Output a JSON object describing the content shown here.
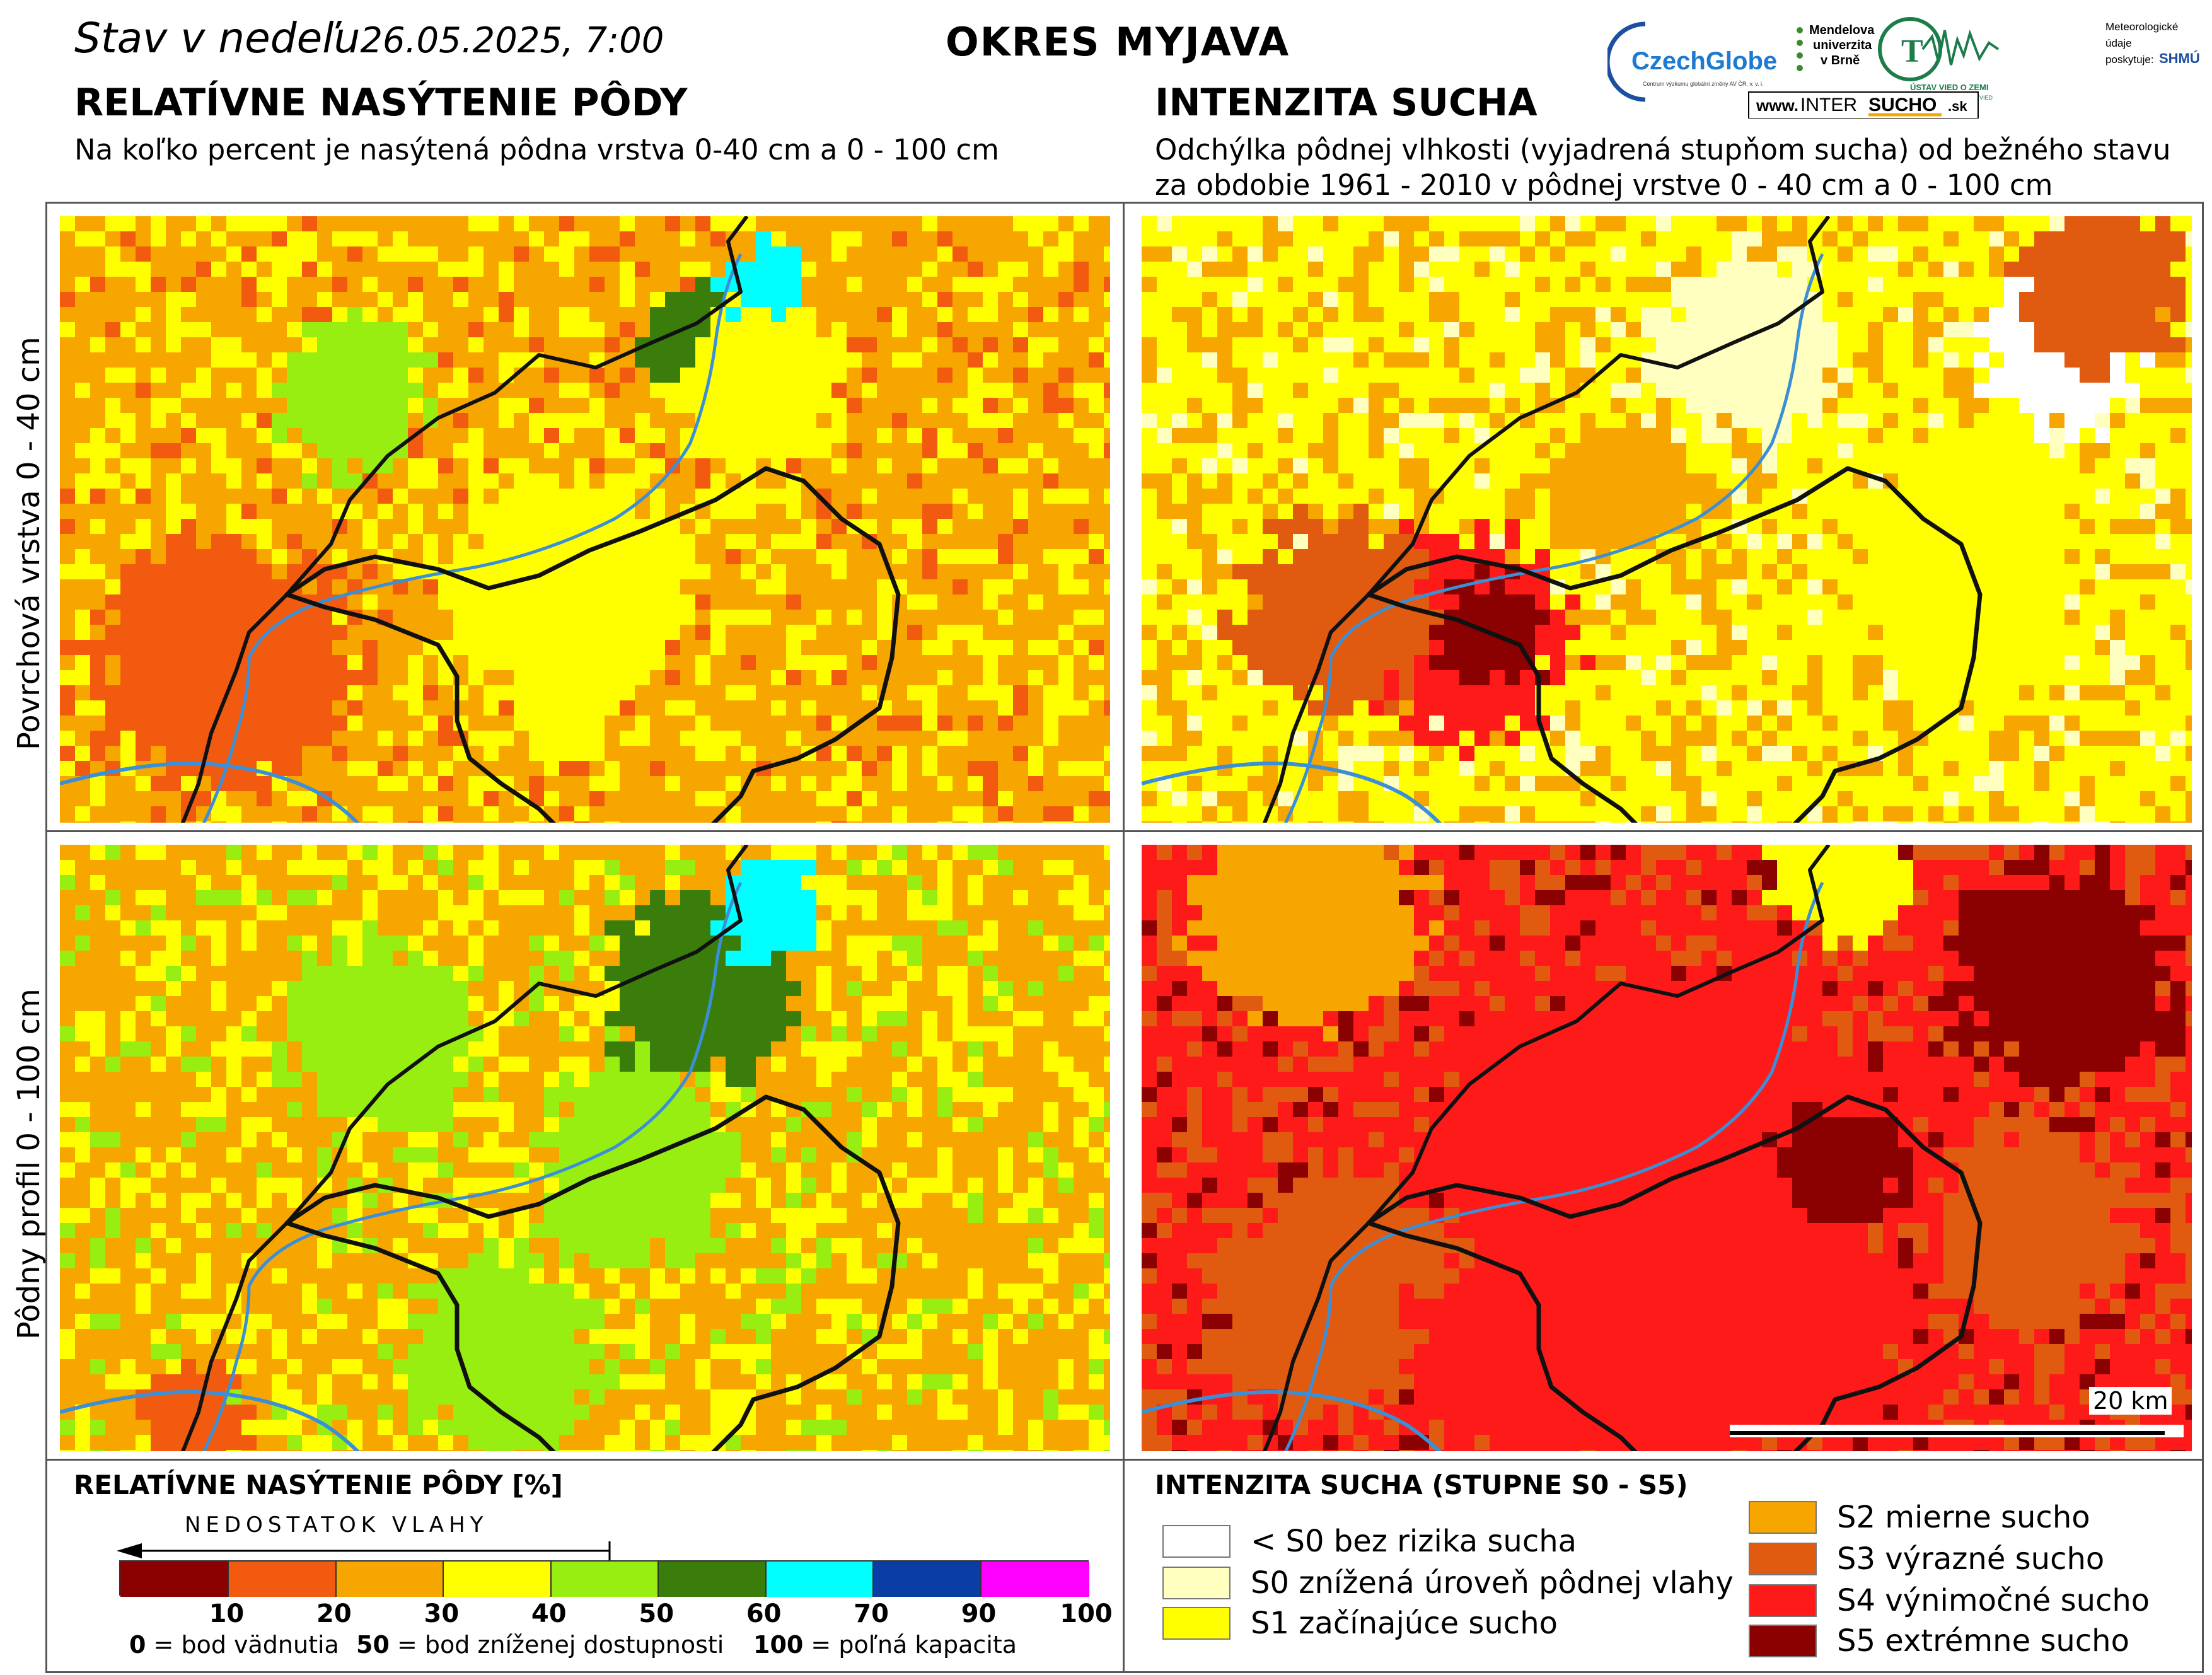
{
  "header": {
    "date_prefix": "Stav v nedeľu",
    "date_value": "26.05.2025, 7:00",
    "district": "OKRES  MYJAVA"
  },
  "left_section": {
    "title": "RELATÍVNE NASÝTENIE PÔDY",
    "subtitle": "Na koľko percent je nasýtená pôdna vrstva 0-40 cm a 0 - 100 cm"
  },
  "right_section": {
    "title": "INTENZITA SUCHA",
    "subtitle_line1": "Odchýlka pôdnej vlhkosti (vyjadrená stupňom sucha) od bežného stavu",
    "subtitle_line2": "za obdobie 1961 - 2010 v pôdnej vrstve 0 - 40 cm a 0 - 100 cm"
  },
  "logos": {
    "czechglobe": "CzechGlobe",
    "czechglobe_sub": "Centrum výzkumu globální změny AV ČR, v. v. i.",
    "mendel": [
      "Mendelova",
      "univerzita",
      "v Brně"
    ],
    "ustav": "ÚSTAV VIED O ZEMI",
    "ustav_sub": "SLOVENSKEJ AKADÉMIE VIED",
    "shmu_note": [
      "Meteorologické",
      "údaje",
      "poskytuje:"
    ],
    "shmu": "SHMÚ",
    "intersucho_www": "www.",
    "intersucho_a": "INTER",
    "intersucho_b": "SUCHO",
    "intersucho_c": ".sk"
  },
  "row_labels": {
    "top": "Povrchová vrstva 0 - 40 cm",
    "bottom": "Pôdny profil 0 - 100 cm"
  },
  "scale_bar": "20 km",
  "legend_saturation": {
    "title": "RELATÍVNE NASÝTENIE PÔDY [%]",
    "arrow_label": "NEDOSTATOK VLAHY",
    "colors": [
      "#8b0000",
      "#f25b0f",
      "#f7a600",
      "#ffff00",
      "#99ee11",
      "#3a7d0a",
      "#00ffff",
      "#0a3ea5",
      "#ff00ff"
    ],
    "ticks": [
      "10",
      "20",
      "30",
      "40",
      "50",
      "60",
      "70",
      "90",
      "100"
    ],
    "note_a_num": "0",
    "note_a_txt": " = bod vädnutia",
    "note_b_num": "50",
    "note_b_txt": " = bod zníženej dostupnosti",
    "note_c_num": "100",
    "note_c_txt": " = poľná kapacita"
  },
  "legend_drought": {
    "title": "INTENZITA SUCHA (STUPNE S0 - S5)",
    "items": [
      {
        "label": "< S0 bez rizika sucha",
        "color": "#ffffff"
      },
      {
        "label": "S0 znížená úroveň pôdnej vlahy",
        "color": "#ffffc0"
      },
      {
        "label": "S1 začínajúce sucho",
        "color": "#ffff00"
      },
      {
        "label": "S2 mierne sucho",
        "color": "#f7a600"
      },
      {
        "label": "S3 výrazné sucho",
        "color": "#e05a10"
      },
      {
        "label": "S4 výnimočné sucho",
        "color": "#ff1a1a"
      },
      {
        "label": "S5 extrémne sucho",
        "color": "#8b0000"
      }
    ]
  },
  "maps": {
    "sat_top": {
      "label": "soil-saturation-0-40cm",
      "dominant": "yellow-orange",
      "palette": [
        "#f7a600",
        "#ffff00",
        "#f25b0f",
        "#99ee11",
        "#3a7d0a",
        "#00ffff"
      ]
    },
    "sat_bottom": {
      "label": "soil-saturation-0-100cm",
      "dominant": "yellow-green",
      "palette": [
        "#f7a600",
        "#ffff00",
        "#99ee11",
        "#3a7d0a",
        "#00ffff",
        "#f25b0f"
      ]
    },
    "drought_top": {
      "label": "drought-intensity-0-40cm",
      "dominant": "yellow",
      "palette": [
        "#ffff00",
        "#f7a600",
        "#ffffc0",
        "#ffffff",
        "#e05a10",
        "#ff1a1a",
        "#8b0000"
      ]
    },
    "drought_bottom": {
      "label": "drought-intensity-0-100cm",
      "dominant": "red",
      "palette": [
        "#ff1a1a",
        "#e05a10",
        "#8b0000",
        "#f7a600",
        "#ffff00"
      ]
    }
  }
}
